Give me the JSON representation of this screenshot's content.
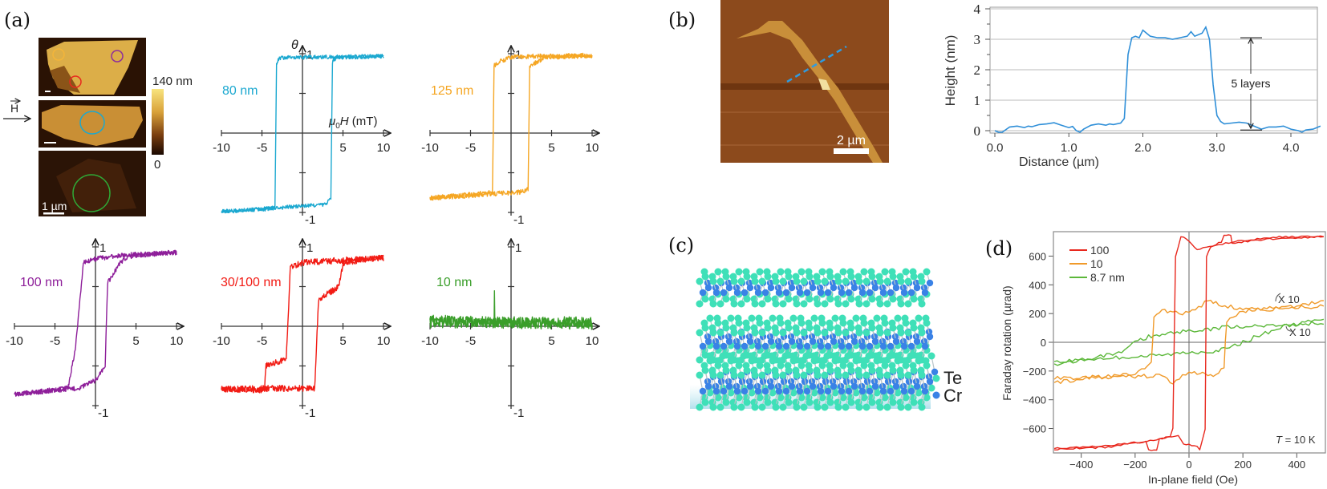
{
  "panel_labels": {
    "a": "(a)",
    "b": "(b)",
    "c": "(c)",
    "d": "(d)"
  },
  "panel_a": {
    "field_label": "H",
    "colorbar": {
      "max_label": "140 nm",
      "min_label": "0",
      "colors": [
        "#f8e47e",
        "#d9a23a",
        "#7a3e10",
        "#1a0800"
      ]
    },
    "scale_bar_label": "1 µm",
    "circle_colors": [
      "#f3b53a",
      "#8e2f9a",
      "#e8281e",
      "#1ba8d0",
      "#2fa836"
    ]
  },
  "panel_b": {
    "scale_bar_label": "2 µm",
    "line_color": "#2f9be0"
  },
  "panel_c": {
    "legend": [
      {
        "label": "Te",
        "color": "#3fe0b8"
      },
      {
        "label": "Cr",
        "color": "#3a82e6"
      }
    ]
  },
  "chart_data": [
    {
      "id": "a-80nm",
      "type": "line",
      "label": "80 nm",
      "color": "#1ba8d0",
      "ylabel": "θ",
      "xlabel": {
        "symbol": "μ",
        "sub": "0",
        "var": "H",
        "unit": " (mT)"
      },
      "xlim": [
        -10,
        10
      ],
      "ylim": [
        -1,
        1
      ],
      "xticks": [
        -10,
        -5,
        5,
        10
      ],
      "ytick_labels": [
        "1",
        "-1"
      ],
      "noise": 0.025,
      "branches": {
        "descending": [
          [
            10,
            0.97
          ],
          [
            -2.9,
            0.95
          ],
          [
            -3.2,
            0.86
          ],
          [
            -3.4,
            -0.95
          ],
          [
            -10,
            -0.99
          ]
        ],
        "ascending": [
          [
            -10,
            -0.99
          ],
          [
            2.8,
            -0.9
          ],
          [
            3.5,
            -0.82
          ],
          [
            3.7,
            0.9
          ],
          [
            4.2,
            0.95
          ],
          [
            10,
            0.97
          ]
        ]
      }
    },
    {
      "id": "a-125nm",
      "type": "line",
      "label": "125 nm",
      "color": "#f5a623",
      "xlim": [
        -10,
        10
      ],
      "ylim": [
        -1,
        1
      ],
      "xticks": [
        -10,
        -5,
        5,
        10
      ],
      "ytick_labels": [
        "1",
        "-1"
      ],
      "noise": 0.03,
      "branches": {
        "descending": [
          [
            10,
            0.98
          ],
          [
            0,
            0.96
          ],
          [
            -1.5,
            0.9
          ],
          [
            -2.1,
            0.85
          ],
          [
            -2.3,
            -0.75
          ],
          [
            -10,
            -0.82
          ]
        ],
        "ascending": [
          [
            -10,
            -0.82
          ],
          [
            1.5,
            -0.74
          ],
          [
            2.1,
            -0.7
          ],
          [
            2.3,
            0.84
          ],
          [
            4,
            0.95
          ],
          [
            10,
            0.98
          ]
        ]
      }
    },
    {
      "id": "a-100nm",
      "type": "line",
      "label": "100 nm",
      "color": "#8e1f9a",
      "xlim": [
        -10,
        10
      ],
      "ylim": [
        -1,
        1
      ],
      "xticks": [
        -10,
        -5,
        5,
        10
      ],
      "ytick_labels": [
        "1",
        "-1"
      ],
      "noise": 0.03,
      "branches": {
        "descending": [
          [
            10,
            0.93
          ],
          [
            4,
            0.9
          ],
          [
            0,
            0.85
          ],
          [
            -1.5,
            0.8
          ],
          [
            -1.8,
            0.45
          ],
          [
            -2.5,
            -0.3
          ],
          [
            -3.4,
            -0.78
          ],
          [
            -5,
            -0.8
          ],
          [
            -10,
            -0.86
          ]
        ],
        "ascending": [
          [
            -10,
            -0.86
          ],
          [
            -2,
            -0.78
          ],
          [
            0,
            -0.68
          ],
          [
            1.2,
            -0.5
          ],
          [
            1.5,
            0.55
          ],
          [
            2,
            0.62
          ],
          [
            3,
            0.8
          ],
          [
            4,
            0.88
          ],
          [
            10,
            0.93
          ]
        ]
      }
    },
    {
      "id": "a-30-100nm",
      "type": "line",
      "label": "30/100 nm",
      "color": "#f21b14",
      "xlim": [
        -10,
        10
      ],
      "ylim": [
        -1,
        1
      ],
      "xticks": [
        -10,
        -5,
        5,
        10
      ],
      "ytick_labels": [
        "1",
        "-1"
      ],
      "noise": 0.04,
      "branches": {
        "descending": [
          [
            10,
            0.86
          ],
          [
            0,
            0.8
          ],
          [
            -1.5,
            0.75
          ],
          [
            -1.7,
            0.2
          ],
          [
            -2,
            -0.4
          ],
          [
            -3,
            -0.45
          ],
          [
            -4.5,
            -0.5
          ],
          [
            -4.7,
            -0.8
          ],
          [
            -10,
            -0.79
          ]
        ],
        "ascending": [
          [
            -10,
            -0.79
          ],
          [
            1.5,
            -0.78
          ],
          [
            1.7,
            -0.3
          ],
          [
            2,
            0.35
          ],
          [
            3,
            0.4
          ],
          [
            4.5,
            0.5
          ],
          [
            5,
            0.8
          ],
          [
            10,
            0.88
          ]
        ]
      }
    },
    {
      "id": "a-10nm",
      "type": "line",
      "label": "10 nm",
      "color": "#3a9e2a",
      "xlim": [
        -10,
        10
      ],
      "ylim": [
        -1,
        1
      ],
      "xticks": [
        -10,
        -5,
        5,
        10
      ],
      "ytick_labels": [
        "1",
        "-1"
      ],
      "noise": 0.07,
      "branches": {
        "descending": [
          [
            10,
            0.05
          ],
          [
            -2,
            0.05
          ],
          [
            -2.05,
            0.38
          ],
          [
            -2.1,
            0.05
          ],
          [
            -10,
            0.08
          ]
        ],
        "ascending": [
          [
            -10,
            0.05
          ],
          [
            10,
            0.03
          ]
        ]
      }
    },
    {
      "id": "b-height-profile",
      "type": "line",
      "color": "#2f8fd8",
      "xlabel": "Distance (µm)",
      "ylabel": "Height (nm)",
      "xlim": [
        -0.1,
        4.5
      ],
      "ylim": [
        -0.1,
        4.05
      ],
      "xticks": [
        "0.0",
        "1.0",
        "2.0",
        "3.0",
        "4.0"
      ],
      "yticks": [
        "0",
        "1",
        "2",
        "3",
        "4"
      ],
      "grid": true,
      "annotation": "5 layers",
      "x": [
        0,
        0.05,
        0.1,
        0.2,
        0.3,
        0.4,
        0.45,
        0.5,
        0.6,
        0.7,
        0.8,
        0.9,
        1.0,
        1.05,
        1.1,
        1.15,
        1.2,
        1.3,
        1.4,
        1.5,
        1.55,
        1.6,
        1.7,
        1.75,
        1.8,
        1.85,
        1.9,
        1.95,
        2.0,
        2.1,
        2.2,
        2.3,
        2.4,
        2.5,
        2.6,
        2.65,
        2.7,
        2.8,
        2.85,
        2.9,
        2.95,
        3.0,
        3.05,
        3.1,
        3.2,
        3.3,
        3.4,
        3.5,
        3.6,
        3.7,
        3.8,
        3.9,
        4.0,
        4.1,
        4.15,
        4.2,
        4.3,
        4.4
      ],
      "y": [
        0.0,
        -0.05,
        -0.05,
        0.12,
        0.15,
        0.1,
        0.15,
        0.13,
        0.2,
        0.22,
        0.26,
        0.18,
        0.1,
        0.14,
        0.0,
        -0.05,
        0.05,
        0.18,
        0.22,
        0.18,
        0.22,
        0.2,
        0.25,
        0.4,
        2.5,
        3.05,
        3.1,
        3.05,
        3.3,
        3.1,
        3.05,
        3.05,
        3.0,
        3.05,
        3.1,
        3.25,
        3.1,
        3.2,
        3.4,
        3.0,
        1.5,
        0.5,
        0.3,
        0.22,
        0.25,
        0.28,
        0.25,
        0.15,
        0.05,
        0.12,
        0.12,
        0.15,
        0.05,
        0.0,
        -0.05,
        0.02,
        0.05,
        0.15
      ]
    },
    {
      "id": "d-faraday",
      "type": "line",
      "xlabel": "In-plane field (Oe)",
      "ylabel": "Faraday rotation (µrad)",
      "xlim": [
        -500,
        500
      ],
      "ylim": [
        -770,
        770
      ],
      "xticks": [
        -400,
        -200,
        0,
        200,
        400
      ],
      "xtick_labels": [
        "−400",
        "−200",
        "0",
        "200",
        "400"
      ],
      "yticks": [
        -600,
        -400,
        -200,
        0,
        200,
        400,
        600
      ],
      "ytick_labels": [
        "−600",
        "−400",
        "−200",
        "0",
        "200",
        "400",
        "600"
      ],
      "legend_position": "top-left",
      "annotations": {
        "x10_orange": "X 10",
        "x10_green": "X 10",
        "temperature": {
          "T": "T",
          "rest": " = 10 K"
        }
      },
      "series": [
        {
          "name": "100",
          "color": "#e8281e",
          "descending": [
            [
              500,
              740
            ],
            [
              300,
              730
            ],
            [
              160,
              700
            ],
            [
              100,
              670
            ],
            [
              30,
              650
            ],
            [
              0,
              700
            ],
            [
              -30,
              740
            ],
            [
              -50,
              600
            ],
            [
              -60,
              -600
            ],
            [
              -70,
              -660
            ],
            [
              -120,
              -680
            ],
            [
              -300,
              -720
            ],
            [
              -500,
              -740
            ]
          ],
          "ascending": [
            [
              -500,
              -745
            ],
            [
              -300,
              -730
            ],
            [
              -160,
              -690
            ],
            [
              -150,
              -750
            ],
            [
              -120,
              -745
            ],
            [
              -110,
              -670
            ],
            [
              -40,
              -650
            ],
            [
              -20,
              -705
            ],
            [
              30,
              -720
            ],
            [
              40,
              -745
            ],
            [
              60,
              -600
            ],
            [
              65,
              600
            ],
            [
              80,
              660
            ],
            [
              120,
              700
            ],
            [
              130,
              750
            ],
            [
              155,
              750
            ],
            [
              160,
              690
            ],
            [
              300,
              720
            ],
            [
              500,
              735
            ]
          ]
        },
        {
          "name": "10",
          "color": "#f09a2a",
          "descending": [
            [
              500,
              250
            ],
            [
              300,
              240
            ],
            [
              200,
              230
            ],
            [
              100,
              270
            ],
            [
              70,
              290
            ],
            [
              0,
              200
            ],
            [
              -60,
              210
            ],
            [
              -100,
              220
            ],
            [
              -130,
              180
            ],
            [
              -135,
              0
            ],
            [
              -140,
              -150
            ],
            [
              -200,
              -220
            ],
            [
              -300,
              -240
            ],
            [
              -500,
              -280
            ]
          ],
          "ascending": [
            [
              -500,
              -250
            ],
            [
              -300,
              -240
            ],
            [
              -200,
              -240
            ],
            [
              -100,
              -230
            ],
            [
              -60,
              -290
            ],
            [
              0,
              -200
            ],
            [
              50,
              -220
            ],
            [
              100,
              -230
            ],
            [
              130,
              -180
            ],
            [
              135,
              0
            ],
            [
              140,
              150
            ],
            [
              200,
              220
            ],
            [
              300,
              230
            ],
            [
              400,
              250
            ],
            [
              500,
              290
            ]
          ]
        },
        {
          "name": "8.7 nm",
          "color": "#5cb83a",
          "descending": [
            [
              500,
              140
            ],
            [
              400,
              120
            ],
            [
              300,
              110
            ],
            [
              200,
              110
            ],
            [
              100,
              100
            ],
            [
              50,
              80
            ],
            [
              0,
              80
            ],
            [
              -100,
              60
            ],
            [
              -150,
              40
            ],
            [
              -200,
              0
            ],
            [
              -250,
              -60
            ],
            [
              -350,
              -110
            ],
            [
              -500,
              -150
            ]
          ],
          "ascending": [
            [
              -500,
              -140
            ],
            [
              -400,
              -120
            ],
            [
              -200,
              -100
            ],
            [
              -100,
              -90
            ],
            [
              0,
              -70
            ],
            [
              100,
              -60
            ],
            [
              150,
              -40
            ],
            [
              200,
              0
            ],
            [
              250,
              40
            ],
            [
              350,
              110
            ],
            [
              500,
              160
            ]
          ]
        }
      ]
    }
  ]
}
